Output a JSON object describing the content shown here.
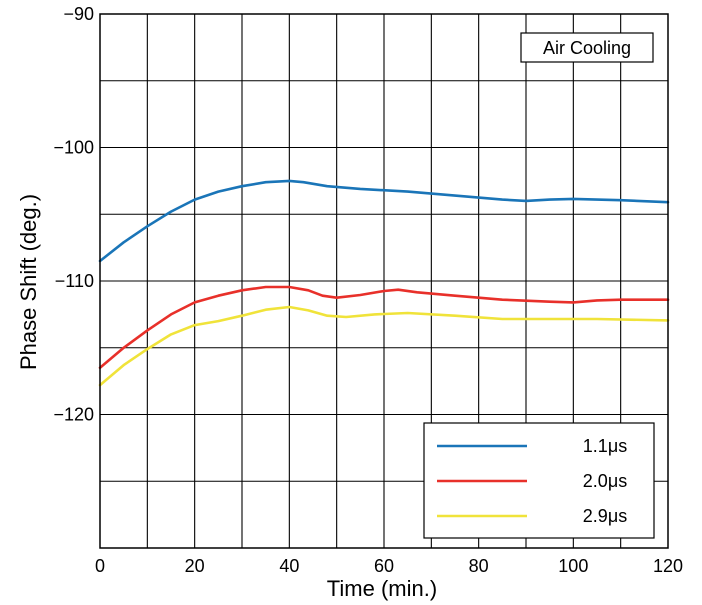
{
  "chart_data": {
    "type": "line",
    "title": "",
    "xlabel": "Time (min.)",
    "ylabel": "Phase Shift (deg.)",
    "xlim": [
      0,
      120
    ],
    "ylim": [
      -130,
      -90
    ],
    "x_ticks": [
      0,
      20,
      40,
      60,
      80,
      100,
      120
    ],
    "x_tick_labels": [
      "0",
      "20",
      "40",
      "60",
      "80",
      "100",
      "120"
    ],
    "y_labeled_ticks": [
      -90,
      -100,
      -110,
      -120
    ],
    "y_tick_labels": [
      "−90",
      "−100",
      "−110",
      "−120"
    ],
    "grid": true,
    "legend_position": "bottom-right",
    "annotation": "Air Cooling",
    "series": [
      {
        "name": "1.1μs",
        "color": "#1a75b8",
        "points": [
          [
            0,
            -108.5
          ],
          [
            5,
            -107.1
          ],
          [
            10,
            -105.9
          ],
          [
            15,
            -104.8
          ],
          [
            20,
            -103.9
          ],
          [
            25,
            -103.3
          ],
          [
            30,
            -102.9
          ],
          [
            35,
            -102.6
          ],
          [
            40,
            -102.5
          ],
          [
            43,
            -102.6
          ],
          [
            48,
            -102.9
          ],
          [
            55,
            -103.1
          ],
          [
            65,
            -103.3
          ],
          [
            75,
            -103.6
          ],
          [
            85,
            -103.9
          ],
          [
            90,
            -104.0
          ],
          [
            95,
            -103.9
          ],
          [
            100,
            -103.85
          ],
          [
            110,
            -103.95
          ],
          [
            120,
            -104.1
          ]
        ]
      },
      {
        "name": "2.0μs",
        "color": "#e8302a",
        "points": [
          [
            0,
            -116.5
          ],
          [
            5,
            -115.0
          ],
          [
            10,
            -113.7
          ],
          [
            15,
            -112.5
          ],
          [
            20,
            -111.6
          ],
          [
            25,
            -111.1
          ],
          [
            30,
            -110.7
          ],
          [
            35,
            -110.45
          ],
          [
            40,
            -110.45
          ],
          [
            44,
            -110.7
          ],
          [
            47,
            -111.1
          ],
          [
            50,
            -111.25
          ],
          [
            55,
            -111.05
          ],
          [
            60,
            -110.75
          ],
          [
            63,
            -110.65
          ],
          [
            67,
            -110.85
          ],
          [
            75,
            -111.1
          ],
          [
            85,
            -111.4
          ],
          [
            95,
            -111.55
          ],
          [
            100,
            -111.6
          ],
          [
            105,
            -111.45
          ],
          [
            110,
            -111.4
          ],
          [
            120,
            -111.4
          ]
        ]
      },
      {
        "name": "2.9μs",
        "color": "#f0e33a",
        "points": [
          [
            0,
            -117.8
          ],
          [
            5,
            -116.3
          ],
          [
            10,
            -115.1
          ],
          [
            15,
            -114.0
          ],
          [
            20,
            -113.3
          ],
          [
            25,
            -113.0
          ],
          [
            30,
            -112.6
          ],
          [
            35,
            -112.15
          ],
          [
            40,
            -111.95
          ],
          [
            44,
            -112.2
          ],
          [
            48,
            -112.6
          ],
          [
            52,
            -112.7
          ],
          [
            58,
            -112.5
          ],
          [
            65,
            -112.4
          ],
          [
            75,
            -112.6
          ],
          [
            85,
            -112.85
          ],
          [
            95,
            -112.85
          ],
          [
            105,
            -112.85
          ],
          [
            120,
            -112.95
          ]
        ]
      }
    ]
  }
}
